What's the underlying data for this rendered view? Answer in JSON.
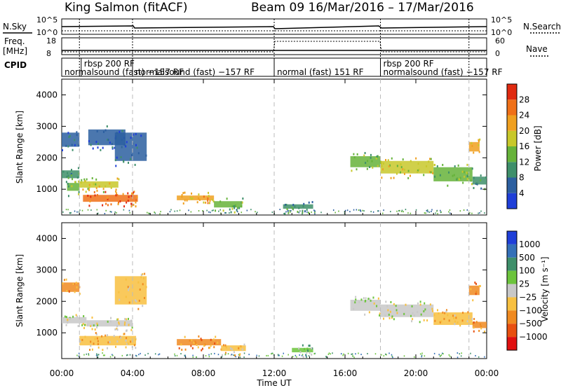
{
  "header": {
    "title": "King Salmon (fitACF)",
    "subtitle": "Beam 09  16/Mar/2016 – 17/Mar/2016"
  },
  "top_panels": {
    "nsky_label": "N.Sky",
    "nsearch_label": "N.Search",
    "freq_label_1": "Freq.",
    "freq_label_2": "[MHz]",
    "nave_label": "Nave",
    "cpid_label": "CPID",
    "nsky_ticks": [
      "10^5",
      "10^0"
    ],
    "nsearch_ticks": [
      "10^5",
      "10^0"
    ],
    "freq_ticks": [
      "18",
      "8"
    ],
    "nave_ticks": [
      "60",
      "0"
    ]
  },
  "cpid_segments": [
    {
      "label": "rbsp 200 RF",
      "start": 1.1,
      "end": 4.0,
      "row": 1
    },
    {
      "label": "normalsound (fast) −157 RF",
      "start": 0.0,
      "end": 4.0,
      "row": 2
    },
    {
      "label": "normalsound (fast) −157 RF",
      "start": 4.0,
      "end": 12.0,
      "row": 2
    },
    {
      "label": "normal (fast) 151 RF",
      "start": 12.0,
      "end": 18.0,
      "row": 2
    },
    {
      "label": "rbsp 200 RF",
      "start": 18.0,
      "end": 23.0,
      "row": 1
    },
    {
      "label": "normalsound (fast) −157 RF",
      "start": 18.0,
      "end": 24.0,
      "row": 2
    }
  ],
  "axes": {
    "x_label": "Time UT",
    "x_ticks": [
      "00:00",
      "04:00",
      "08:00",
      "12:00",
      "16:00",
      "20:00",
      "00:00"
    ],
    "y_label": "Slant Range [km]",
    "y_ticks": [
      1000,
      2000,
      3000,
      4000
    ]
  },
  "power_colorbar": {
    "label": "Power [dB]",
    "ticks": [
      "4",
      "8",
      "12",
      "16",
      "20",
      "24",
      "28"
    ],
    "colors": [
      "#1f3fd8",
      "#2c5fa0",
      "#3e8f6a",
      "#66b33a",
      "#c8c82a",
      "#f0a020",
      "#f07018",
      "#e02a10"
    ]
  },
  "velocity_colorbar": {
    "label": "Velocity [m s⁻¹]",
    "ticks": [
      "1000",
      "500",
      "100",
      "25",
      "−25",
      "−100",
      "−500",
      "−1000"
    ],
    "colors": [
      "#1f3fd8",
      "#3470b8",
      "#3e8f6a",
      "#6cc43c",
      "#c8c8c8",
      "#f8c040",
      "#f08a20",
      "#e85010",
      "#e01010"
    ]
  },
  "chart_data": {
    "type": "heatmap",
    "title": "King Salmon (fitACF)",
    "xlabel": "Time UT",
    "ylabel": "Slant Range [km]",
    "xlim_hours": [
      0,
      24
    ],
    "ylim_km": [
      180,
      4500
    ],
    "dashed_vlines_hours": [
      1.0,
      4.0,
      12.0,
      18.0,
      23.0
    ],
    "power_bands": [
      {
        "t0": 0.0,
        "t1": 1.0,
        "r0": 2350,
        "r1": 2800,
        "level": 1
      },
      {
        "t0": 0.0,
        "t1": 1.0,
        "r0": 1350,
        "r1": 1600,
        "level": 2
      },
      {
        "t0": 0.3,
        "t1": 1.0,
        "r0": 950,
        "r1": 1200,
        "level": 3
      },
      {
        "t0": 1.5,
        "t1": 3.6,
        "r0": 2400,
        "r1": 2900,
        "level": 1
      },
      {
        "t0": 1.0,
        "t1": 3.2,
        "r0": 1050,
        "r1": 1250,
        "level": 4
      },
      {
        "t0": 1.2,
        "t1": 4.3,
        "r0": 600,
        "r1": 820,
        "level": 6
      },
      {
        "t0": 3.0,
        "t1": 4.8,
        "r0": 1900,
        "r1": 2800,
        "level": 1
      },
      {
        "t0": 6.5,
        "t1": 8.6,
        "r0": 650,
        "r1": 800,
        "level": 5
      },
      {
        "t0": 8.6,
        "t1": 10.2,
        "r0": 420,
        "r1": 620,
        "level": 3
      },
      {
        "t0": 12.5,
        "t1": 14.2,
        "r0": 380,
        "r1": 520,
        "level": 2
      },
      {
        "t0": 16.3,
        "t1": 18.0,
        "r0": 1700,
        "r1": 2050,
        "level": 3
      },
      {
        "t0": 18.0,
        "t1": 21.0,
        "r0": 1500,
        "r1": 1900,
        "level": 4
      },
      {
        "t0": 21.0,
        "t1": 23.2,
        "r0": 1250,
        "r1": 1700,
        "level": 3
      },
      {
        "t0": 23.2,
        "t1": 24.0,
        "r0": 1150,
        "r1": 1400,
        "level": 2
      },
      {
        "t0": 23.0,
        "t1": 23.6,
        "r0": 2200,
        "r1": 2500,
        "level": 5
      }
    ],
    "velocity_bands": [
      {
        "t0": 0.0,
        "t1": 1.0,
        "r0": 2300,
        "r1": 2600,
        "level": 6
      },
      {
        "t0": 0.0,
        "t1": 1.4,
        "r0": 1300,
        "r1": 1500,
        "level": 4
      },
      {
        "t0": 1.0,
        "t1": 4.2,
        "r0": 600,
        "r1": 900,
        "level": 5
      },
      {
        "t0": 1.4,
        "t1": 4.0,
        "r0": 1200,
        "r1": 1400,
        "level": 4
      },
      {
        "t0": 3.0,
        "t1": 4.8,
        "r0": 1900,
        "r1": 2800,
        "level": 5
      },
      {
        "t0": 6.5,
        "t1": 9.0,
        "r0": 600,
        "r1": 800,
        "level": 6
      },
      {
        "t0": 9.0,
        "t1": 10.4,
        "r0": 420,
        "r1": 600,
        "level": 5
      },
      {
        "t0": 13.0,
        "t1": 14.2,
        "r0": 380,
        "r1": 520,
        "level": 3
      },
      {
        "t0": 16.3,
        "t1": 18.0,
        "r0": 1700,
        "r1": 2050,
        "level": 4
      },
      {
        "t0": 18.0,
        "t1": 21.0,
        "r0": 1500,
        "r1": 1900,
        "level": 4
      },
      {
        "t0": 21.0,
        "t1": 23.2,
        "r0": 1250,
        "r1": 1650,
        "level": 5
      },
      {
        "t0": 23.2,
        "t1": 24.0,
        "r0": 1150,
        "r1": 1350,
        "level": 6
      },
      {
        "t0": 23.0,
        "t1": 23.6,
        "r0": 2200,
        "r1": 2500,
        "level": 6
      }
    ]
  }
}
